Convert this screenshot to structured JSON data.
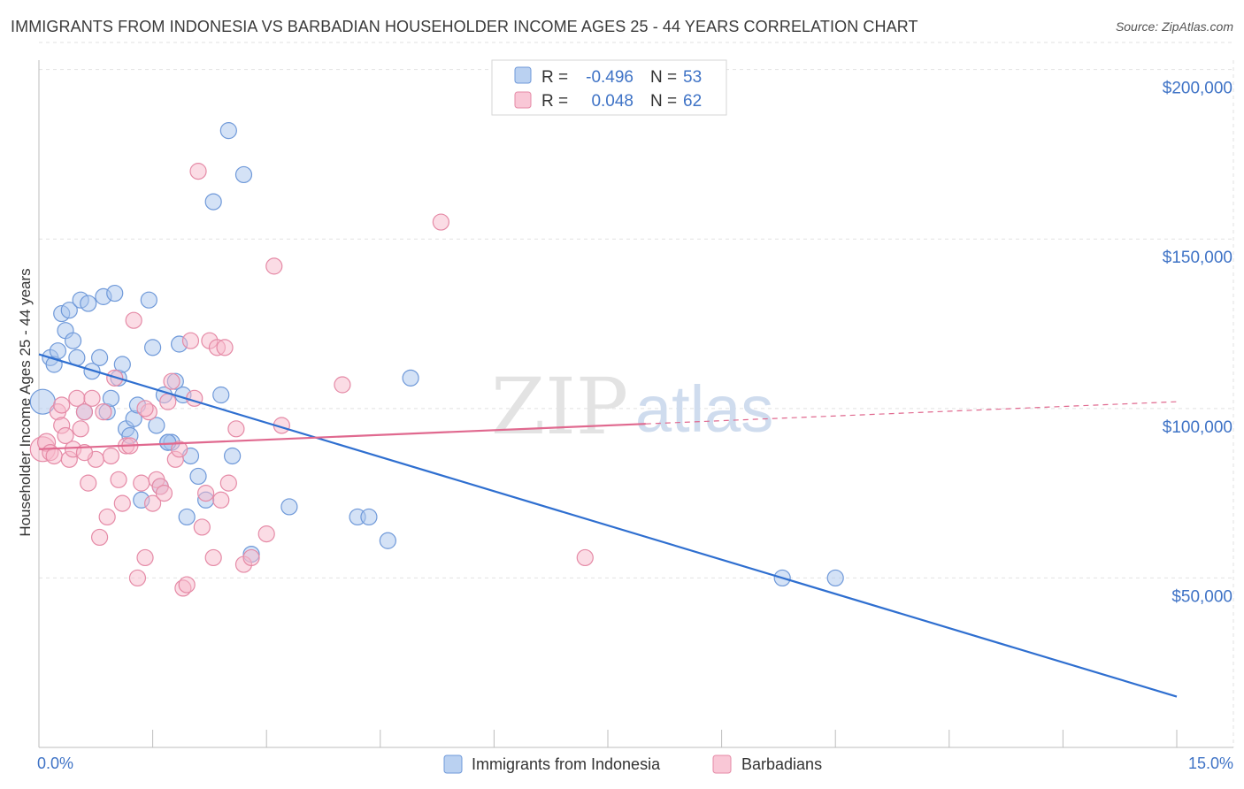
{
  "title": "IMMIGRANTS FROM INDONESIA VS BARBADIAN HOUSEHOLDER INCOME AGES 25 - 44 YEARS CORRELATION CHART",
  "source": "Source: ZipAtlas.com",
  "watermark": {
    "part1": "ZIP",
    "part2": "atlas"
  },
  "legend": {
    "r_label": "R =",
    "n_label": "N =",
    "rows": [
      {
        "r": "-0.496",
        "n": "53",
        "color": "#a9c5ee",
        "stroke": "#6f99d9"
      },
      {
        "r": "0.048",
        "n": "62",
        "color": "#f7b9cc",
        "stroke": "#e58aa6"
      }
    ]
  },
  "chart_data": {
    "type": "scatter",
    "title": "IMMIGRANTS FROM INDONESIA VS BARBADIAN HOUSEHOLDER INCOME AGES 25 - 44 YEARS CORRELATION CHART",
    "xlabel": "",
    "ylabel": "Householder Income Ages 25 - 44 years",
    "xlim": [
      0,
      15
    ],
    "ylim": [
      0,
      208000
    ],
    "x_tick_labels": {
      "left": "0.0%",
      "right": "15.0%"
    },
    "y_ticks": [
      {
        "value": 50000,
        "label": "$50,000"
      },
      {
        "value": 100000,
        "label": "$100,000"
      },
      {
        "value": 150000,
        "label": "$150,000"
      },
      {
        "value": 200000,
        "label": "$200,000"
      }
    ],
    "grid": true,
    "legend_position": "bottom-center",
    "series": [
      {
        "name": "Immigrants from Indonesia",
        "color": "#a9c5ee",
        "stroke": "#6f99d9",
        "line_color": "#2f6fd0",
        "trend": {
          "x0": 0,
          "y0": 116000,
          "x1": 15,
          "y1": 15000,
          "dash_from": null
        },
        "points": [
          [
            0.05,
            102000,
            14
          ],
          [
            0.15,
            115000,
            9
          ],
          [
            0.2,
            113000,
            9
          ],
          [
            0.25,
            117000,
            9
          ],
          [
            0.3,
            128000,
            9
          ],
          [
            0.35,
            123000,
            9
          ],
          [
            0.4,
            129000,
            9
          ],
          [
            0.45,
            120000,
            9
          ],
          [
            0.5,
            115000,
            9
          ],
          [
            0.55,
            132000,
            9
          ],
          [
            0.6,
            99000,
            9
          ],
          [
            0.65,
            131000,
            9
          ],
          [
            0.7,
            111000,
            9
          ],
          [
            0.8,
            115000,
            9
          ],
          [
            0.85,
            133000,
            9
          ],
          [
            0.9,
            99000,
            9
          ],
          [
            0.95,
            103000,
            9
          ],
          [
            1.0,
            134000,
            9
          ],
          [
            1.05,
            109000,
            9
          ],
          [
            1.1,
            113000,
            9
          ],
          [
            1.15,
            94000,
            9
          ],
          [
            1.2,
            92000,
            9
          ],
          [
            1.25,
            97000,
            9
          ],
          [
            1.3,
            101000,
            9
          ],
          [
            1.35,
            73000,
            9
          ],
          [
            1.45,
            132000,
            9
          ],
          [
            1.5,
            118000,
            9
          ],
          [
            1.55,
            95000,
            9
          ],
          [
            1.6,
            77000,
            9
          ],
          [
            1.65,
            104000,
            9
          ],
          [
            1.7,
            90000,
            9
          ],
          [
            1.75,
            90000,
            9
          ],
          [
            1.8,
            108000,
            9
          ],
          [
            1.85,
            119000,
            9
          ],
          [
            1.9,
            104000,
            9
          ],
          [
            1.95,
            68000,
            9
          ],
          [
            2.0,
            86000,
            9
          ],
          [
            2.1,
            80000,
            9
          ],
          [
            2.2,
            73000,
            9
          ],
          [
            2.3,
            161000,
            9
          ],
          [
            2.4,
            104000,
            9
          ],
          [
            2.5,
            182000,
            9
          ],
          [
            2.55,
            86000,
            9
          ],
          [
            2.7,
            169000,
            9
          ],
          [
            2.8,
            57000,
            9
          ],
          [
            3.3,
            71000,
            9
          ],
          [
            4.2,
            68000,
            9
          ],
          [
            4.35,
            68000,
            9
          ],
          [
            4.6,
            61000,
            9
          ],
          [
            4.9,
            109000,
            9
          ],
          [
            9.8,
            50000,
            9
          ],
          [
            10.5,
            50000,
            9
          ],
          [
            1.7,
            90000,
            9
          ]
        ]
      },
      {
        "name": "Barbadians",
        "color": "#f7b9cc",
        "stroke": "#e58aa6",
        "line_color": "#e0698f",
        "trend": {
          "x0": 0,
          "y0": 88000,
          "x1": 15,
          "y1": 102000,
          "dash_from": 8
        },
        "points": [
          [
            0.05,
            88000,
            14
          ],
          [
            0.1,
            90000,
            10
          ],
          [
            0.15,
            87000,
            9
          ],
          [
            0.2,
            86000,
            9
          ],
          [
            0.25,
            99000,
            9
          ],
          [
            0.3,
            95000,
            9
          ],
          [
            0.35,
            92000,
            9
          ],
          [
            0.4,
            85000,
            9
          ],
          [
            0.45,
            88000,
            9
          ],
          [
            0.5,
            103000,
            9
          ],
          [
            0.55,
            94000,
            9
          ],
          [
            0.6,
            99000,
            9
          ],
          [
            0.65,
            78000,
            9
          ],
          [
            0.7,
            103000,
            9
          ],
          [
            0.75,
            85000,
            9
          ],
          [
            0.8,
            62000,
            9
          ],
          [
            0.85,
            99000,
            9
          ],
          [
            0.9,
            68000,
            9
          ],
          [
            0.95,
            86000,
            9
          ],
          [
            1.0,
            109000,
            9
          ],
          [
            1.05,
            79000,
            9
          ],
          [
            1.1,
            72000,
            9
          ],
          [
            1.15,
            89000,
            9
          ],
          [
            1.2,
            89000,
            9
          ],
          [
            1.25,
            126000,
            9
          ],
          [
            1.3,
            50000,
            9
          ],
          [
            1.35,
            78000,
            9
          ],
          [
            1.4,
            56000,
            9
          ],
          [
            1.45,
            99000,
            9
          ],
          [
            1.5,
            72000,
            9
          ],
          [
            1.55,
            79000,
            9
          ],
          [
            1.6,
            77000,
            9
          ],
          [
            1.65,
            75000,
            9
          ],
          [
            1.7,
            102000,
            9
          ],
          [
            1.75,
            108000,
            9
          ],
          [
            1.8,
            85000,
            9
          ],
          [
            1.85,
            88000,
            9
          ],
          [
            1.9,
            47000,
            9
          ],
          [
            1.95,
            48000,
            9
          ],
          [
            2.0,
            120000,
            9
          ],
          [
            2.05,
            103000,
            9
          ],
          [
            2.1,
            170000,
            9
          ],
          [
            2.15,
            65000,
            9
          ],
          [
            2.2,
            75000,
            9
          ],
          [
            2.25,
            120000,
            9
          ],
          [
            2.3,
            56000,
            9
          ],
          [
            2.35,
            118000,
            9
          ],
          [
            2.4,
            73000,
            9
          ],
          [
            2.45,
            118000,
            9
          ],
          [
            2.5,
            78000,
            9
          ],
          [
            2.6,
            94000,
            9
          ],
          [
            2.7,
            54000,
            9
          ],
          [
            2.8,
            56000,
            9
          ],
          [
            3.0,
            63000,
            9
          ],
          [
            3.1,
            142000,
            9
          ],
          [
            3.2,
            95000,
            9
          ],
          [
            4.0,
            107000,
            9
          ],
          [
            5.3,
            155000,
            9
          ],
          [
            7.2,
            56000,
            9
          ],
          [
            1.4,
            100000,
            9
          ],
          [
            0.3,
            101000,
            9
          ],
          [
            0.6,
            87000,
            9
          ]
        ]
      }
    ]
  }
}
